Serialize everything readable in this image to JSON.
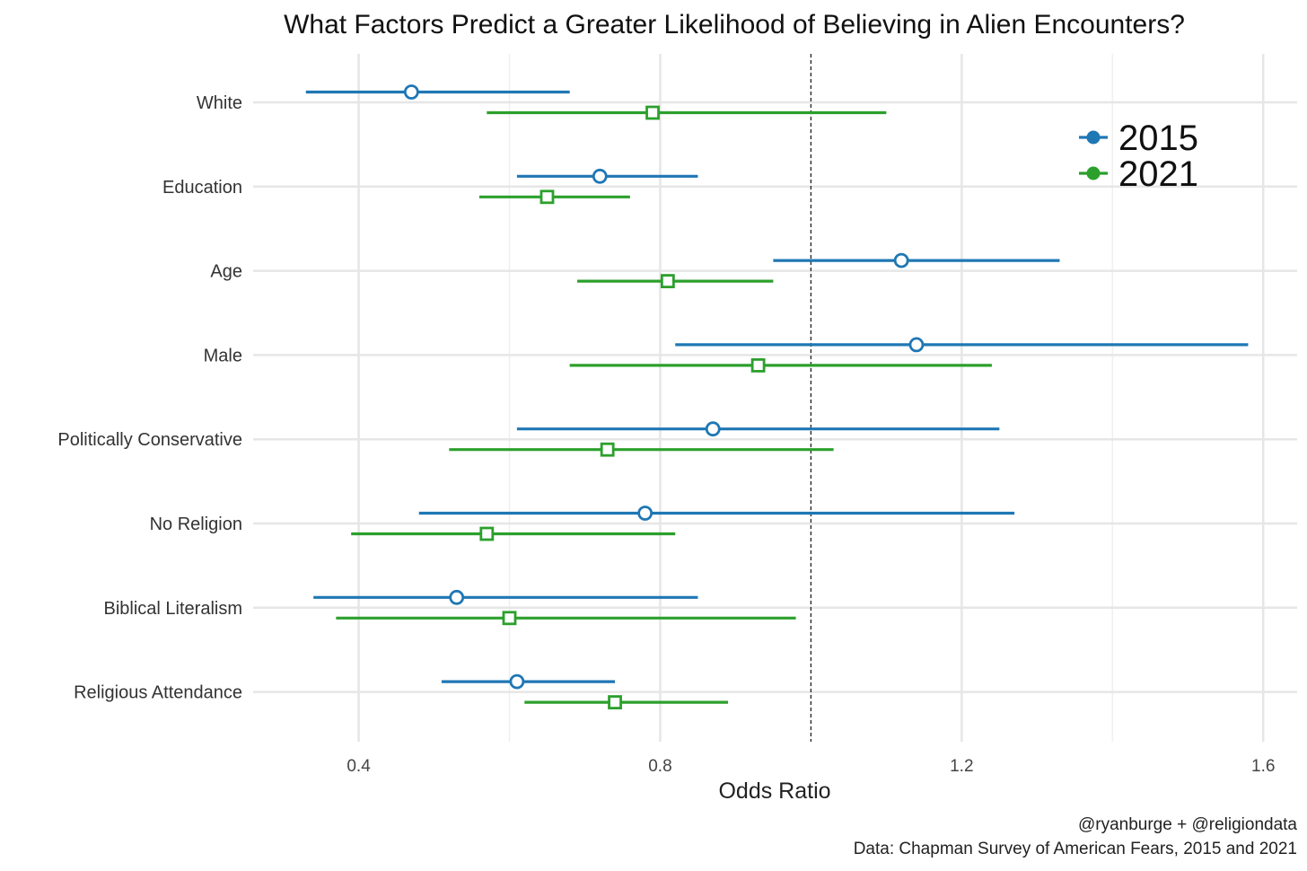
{
  "chart_data": {
    "type": "forest-plot",
    "title": "What Factors Predict a Greater Likelihood of Believing in Alien Encounters?",
    "xlabel": "Odds Ratio",
    "xlim": [
      0.26,
      1.645
    ],
    "x_ticks": [
      0.4,
      0.8,
      1.2,
      1.6
    ],
    "x_tick_labels": [
      "0.4",
      "0.8",
      "1.2",
      "1.6"
    ],
    "reference_line": 1.0,
    "categories": [
      "White",
      "Education",
      "Age",
      "Male",
      "Politically Conservative",
      "No Religion",
      "Biblical Literalism",
      "Religious Attendance"
    ],
    "series": [
      {
        "name": "2015",
        "color": "#1f77b4",
        "marker": "circle",
        "estimates": [
          0.47,
          0.72,
          1.12,
          1.14,
          0.87,
          0.78,
          0.53,
          0.61
        ],
        "lower": [
          0.33,
          0.61,
          0.95,
          0.82,
          0.61,
          0.48,
          0.34,
          0.51
        ],
        "upper": [
          0.68,
          0.85,
          1.33,
          1.58,
          1.25,
          1.27,
          0.85,
          0.74
        ]
      },
      {
        "name": "2021",
        "color": "#2ca02c",
        "marker": "square",
        "estimates": [
          0.79,
          0.65,
          0.81,
          0.93,
          0.73,
          0.57,
          0.6,
          0.74
        ],
        "lower": [
          0.57,
          0.56,
          0.69,
          0.68,
          0.52,
          0.39,
          0.37,
          0.62
        ],
        "upper": [
          1.1,
          0.76,
          0.95,
          1.24,
          1.03,
          0.82,
          0.98,
          0.89
        ]
      }
    ],
    "legend": [
      "2015",
      "2021"
    ],
    "legend_position": "top-right",
    "grid": true
  },
  "caption": {
    "line1": "@ryanburge + @religiondata",
    "line2": "Data: Chapman Survey of American Fears, 2015 and 2021"
  }
}
